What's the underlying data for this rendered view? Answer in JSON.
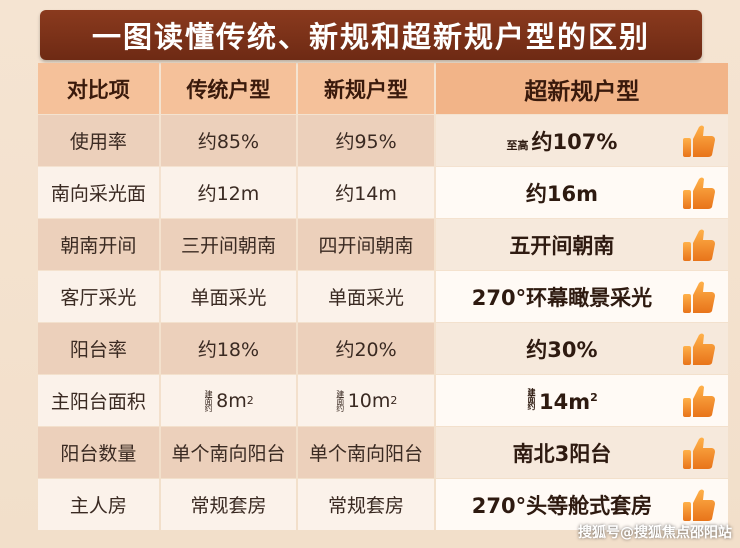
{
  "title": "一图读懂传统、新规和超新规户型的区别",
  "headers": [
    "对比项",
    "传统户型",
    "新规户型",
    "超新规户型"
  ],
  "rows": [
    {
      "item": "使用率",
      "traditional": "约85%",
      "new": "约95%",
      "super_prefix": "至高",
      "super": "约107%"
    },
    {
      "item": "南向采光面",
      "traditional": "约12m",
      "new": "约14m",
      "super_prefix": "",
      "super": "约16m"
    },
    {
      "item": "朝南开间",
      "traditional": "三开间朝南",
      "new": "四开间朝南",
      "super_prefix": "",
      "super": "五开间朝南"
    },
    {
      "item": "客厅采光",
      "traditional": "单面采光",
      "new": "单面采光",
      "super_prefix": "",
      "super": "270°环幕瞰景采光"
    },
    {
      "item": "阳台率",
      "traditional": "约18%",
      "new": "约20%",
      "super_prefix": "",
      "super": "约30%"
    },
    {
      "item": "主阳台面积",
      "traditional": "8m",
      "new": "10m",
      "super_prefix": "",
      "super": "14m",
      "unit_sup": "2",
      "tiny_prefix": "建面约"
    },
    {
      "item": "阳台数量",
      "traditional": "单个南向阳台",
      "new": "单个南向阳台",
      "super_prefix": "",
      "super": "南北3阳台"
    },
    {
      "item": "主人房",
      "traditional": "常规套房",
      "new": "常规套房",
      "super_prefix": "",
      "super": "270°头等舱式套房"
    }
  ],
  "icons": {
    "thumb": "thumbs-up-icon"
  },
  "colors": {
    "title_bg": "#7a3118",
    "thumb": "#f08a24"
  },
  "watermark": "搜狐号@搜狐焦点邵阳站"
}
